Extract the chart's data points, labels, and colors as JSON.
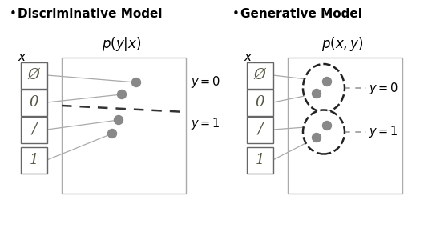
{
  "title_left": "Discriminative Model",
  "title_right": "Generative Model",
  "label_left": "$p(y|x)$",
  "label_right": "$p(x, y)$",
  "x_label": "$x$",
  "background_color": "#ffffff",
  "box_edge_color": "#999999",
  "dot_color": "#888888",
  "line_color": "#aaaaaa",
  "dashed_border_color": "#222222",
  "dashed_arrow_color": "#999999",
  "img_labels": [
    "Ø",
    "0",
    "/",
    "1"
  ],
  "y0_label": "$y = 0$",
  "y1_label": "$y = 1$",
  "bullet": "•"
}
